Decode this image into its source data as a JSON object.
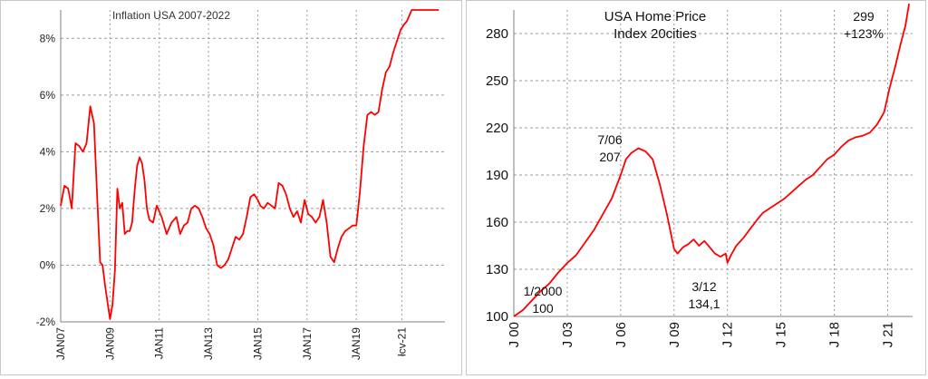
{
  "chart_data": [
    {
      "type": "line",
      "title": "Inflation USA 2007-2022",
      "xlabel": "",
      "ylabel": "",
      "xlim": [
        2007.0,
        2022.6
      ],
      "ylim": [
        -2,
        9
      ],
      "y_ticks": [
        {
          "value": -2,
          "label": "-2%"
        },
        {
          "value": 0,
          "label": "0%"
        },
        {
          "value": 2,
          "label": "2%"
        },
        {
          "value": 4,
          "label": "4%"
        },
        {
          "value": 6,
          "label": "6%"
        },
        {
          "value": 8,
          "label": "8%"
        }
      ],
      "x_ticks": [
        {
          "value": 2007.0,
          "label": "JAN07"
        },
        {
          "value": 2009.0,
          "label": "JAN09"
        },
        {
          "value": 2011.0,
          "label": "JAN11"
        },
        {
          "value": 2013.0,
          "label": "JAN13"
        },
        {
          "value": 2015.0,
          "label": "JAN15"
        },
        {
          "value": 2017.0,
          "label": "JAN17"
        },
        {
          "value": 2019.0,
          "label": "JAN19"
        },
        {
          "value": 2020.85,
          "label": "łcv-21"
        }
      ],
      "grid": true,
      "color": "#ff0000",
      "series": [
        {
          "x": [
            2007.0,
            2007.15,
            2007.3,
            2007.45,
            2007.6,
            2007.75,
            2007.9,
            2008.05,
            2008.2,
            2008.35,
            2008.5,
            2008.6,
            2008.7,
            2008.8,
            2008.9,
            2009.0,
            2009.1,
            2009.2,
            2009.3,
            2009.4,
            2009.5,
            2009.6,
            2009.7,
            2009.8,
            2009.9,
            2010.0,
            2010.1,
            2010.2,
            2010.3,
            2010.4,
            2010.5,
            2010.6,
            2010.75,
            2010.9,
            2011.1,
            2011.3,
            2011.5,
            2011.7,
            2011.85,
            2012.0,
            2012.15,
            2012.3,
            2012.45,
            2012.6,
            2012.75,
            2012.9,
            2013.05,
            2013.2,
            2013.35,
            2013.5,
            2013.65,
            2013.8,
            2013.95,
            2014.1,
            2014.25,
            2014.4,
            2014.55,
            2014.7,
            2014.85,
            2015.0,
            2015.1,
            2015.25,
            2015.4,
            2015.55,
            2015.7,
            2015.85,
            2016.0,
            2016.15,
            2016.3,
            2016.45,
            2016.6,
            2016.75,
            2016.9,
            2017.05,
            2017.2,
            2017.35,
            2017.5,
            2017.65,
            2017.8,
            2017.95,
            2018.1,
            2018.25,
            2018.4,
            2018.55,
            2018.7,
            2018.85,
            2019.0,
            2019.15,
            2019.3,
            2019.45,
            2019.6,
            2019.75,
            2019.9,
            2020.05,
            2020.2,
            2020.35,
            2020.5,
            2020.65,
            2020.8,
            2020.95,
            2021.05,
            2021.15,
            2021.25,
            2021.35,
            2021.45,
            2021.6,
            2021.75,
            2021.9,
            2022.05,
            2022.2,
            2022.35
          ],
          "y": [
            2.1,
            2.8,
            2.7,
            2.0,
            4.3,
            4.2,
            4.0,
            4.3,
            5.6,
            5.0,
            2.0,
            0.1,
            0.0,
            -0.7,
            -1.3,
            -1.9,
            -1.4,
            -0.2,
            2.7,
            2.0,
            2.2,
            1.1,
            1.2,
            1.2,
            1.5,
            2.6,
            3.5,
            3.8,
            3.6,
            3.0,
            2.0,
            1.6,
            1.5,
            2.1,
            1.7,
            1.1,
            1.5,
            1.7,
            1.1,
            1.4,
            1.5,
            2.0,
            2.1,
            2.0,
            1.7,
            1.3,
            1.1,
            0.7,
            0.0,
            -0.1,
            0.0,
            0.2,
            0.6,
            1.0,
            0.9,
            1.1,
            1.7,
            2.4,
            2.5,
            2.3,
            2.1,
            2.0,
            2.2,
            2.1,
            2.0,
            2.9,
            2.8,
            2.5,
            2.0,
            1.7,
            1.9,
            1.5,
            2.3,
            1.8,
            1.7,
            1.5,
            1.7,
            2.3,
            1.5,
            0.3,
            0.1,
            0.6,
            1.0,
            1.2,
            1.3,
            1.4,
            1.4,
            2.6,
            4.2,
            5.3,
            5.4,
            5.3,
            5.4,
            6.2,
            6.8,
            7.0,
            7.5,
            7.9,
            8.3,
            8.5,
            8.6,
            8.8,
            9.0,
            9.0,
            9.0,
            9.0,
            9.0,
            9.0,
            9.0,
            9.0,
            9.0
          ]
        }
      ]
    },
    {
      "type": "line",
      "title": "USA Home Price",
      "subtitle": "Index 20cities",
      "xlabel": "",
      "ylabel": "",
      "xlim": [
        2000.0,
        2022.4
      ],
      "ylim": [
        100,
        295
      ],
      "y_ticks": [
        {
          "value": 100,
          "label": "100"
        },
        {
          "value": 130,
          "label": "130"
        },
        {
          "value": 160,
          "label": "160"
        },
        {
          "value": 190,
          "label": "190"
        },
        {
          "value": 220,
          "label": "220"
        },
        {
          "value": 250,
          "label": "250"
        },
        {
          "value": 280,
          "label": "280"
        }
      ],
      "x_ticks": [
        {
          "value": 2000.0,
          "label": "J 00"
        },
        {
          "value": 2003.0,
          "label": "J 03"
        },
        {
          "value": 2006.0,
          "label": "J 06"
        },
        {
          "value": 2009.0,
          "label": "J 09"
        },
        {
          "value": 2012.0,
          "label": "J 12"
        },
        {
          "value": 2015.0,
          "label": "J 15"
        },
        {
          "value": 2018.0,
          "label": "J 18"
        },
        {
          "value": 2021.0,
          "label": "J 21"
        }
      ],
      "grid": true,
      "color": "#ff0000",
      "annotations": [
        {
          "lines": [
            "1/2000",
            "100"
          ]
        },
        {
          "lines": [
            "7/06",
            "207"
          ]
        },
        {
          "lines": [
            "3/12",
            "134,1"
          ]
        },
        {
          "lines": [
            "299",
            "+123%"
          ]
        }
      ],
      "series": [
        {
          "x": [
            2000.0,
            2000.5,
            2001.0,
            2001.5,
            2002.0,
            2002.5,
            2003.0,
            2003.5,
            2004.0,
            2004.5,
            2005.0,
            2005.5,
            2006.0,
            2006.3,
            2006.6,
            2007.0,
            2007.4,
            2007.8,
            2008.2,
            2008.6,
            2009.0,
            2009.2,
            2009.5,
            2009.8,
            2010.1,
            2010.4,
            2010.7,
            2011.0,
            2011.3,
            2011.6,
            2011.9,
            2012.0,
            2012.2,
            2012.5,
            2012.9,
            2013.3,
            2013.7,
            2014.0,
            2014.4,
            2014.8,
            2015.2,
            2015.6,
            2016.0,
            2016.4,
            2016.8,
            2017.2,
            2017.6,
            2018.0,
            2018.4,
            2018.8,
            2019.2,
            2019.6,
            2020.0,
            2020.4,
            2020.8,
            2021.1,
            2021.4,
            2021.7,
            2022.0,
            2022.2
          ],
          "y": [
            100,
            104,
            110,
            116,
            121,
            128,
            134,
            139,
            147,
            155,
            165,
            175,
            190,
            200,
            204,
            207,
            205,
            200,
            184,
            165,
            143,
            140,
            144,
            146,
            149,
            145,
            148,
            144,
            140,
            138,
            140,
            134.1,
            139,
            145,
            150,
            156,
            162,
            166,
            169,
            172,
            175,
            179,
            183,
            187,
            190,
            195,
            200,
            203,
            208,
            212,
            214,
            215,
            217,
            222,
            230,
            245,
            258,
            272,
            285,
            299
          ]
        }
      ]
    }
  ]
}
